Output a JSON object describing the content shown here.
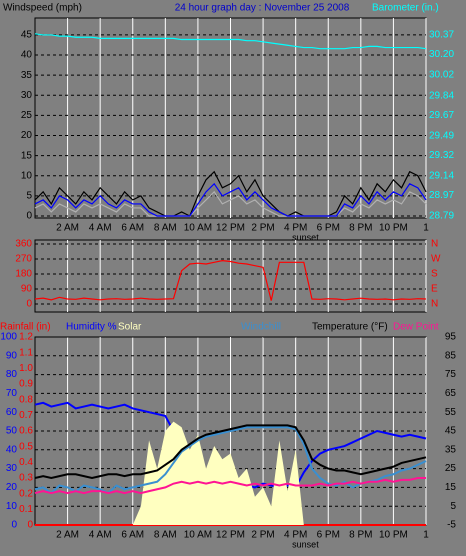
{
  "chart_data": [
    {
      "type": "line",
      "title": "24 hour graph day : November 25 2008",
      "title_color": "#0000cc",
      "ylabel": "Windspeed (mph)",
      "ylabel_color": "#000000",
      "y2label": "Barometer (in.)",
      "y2label_color": "#00ffff",
      "x": [
        0,
        0.5,
        1,
        1.5,
        2,
        2.5,
        3,
        3.5,
        4,
        4.5,
        5,
        5.5,
        6,
        6.5,
        7,
        7.5,
        8,
        8.5,
        9,
        9.5,
        10,
        10.5,
        11,
        11.5,
        12,
        12.5,
        13,
        13.5,
        14,
        14.5,
        15,
        15.5,
        16,
        16.5,
        17,
        17.5,
        18,
        18.5,
        19,
        19.5,
        20,
        20.5,
        21,
        21.5,
        22,
        22.5,
        23,
        23.5,
        24
      ],
      "xlim": [
        0,
        24
      ],
      "xticks": [
        {
          "value": 2,
          "label": "2 AM"
        },
        {
          "value": 4,
          "label": "4 AM"
        },
        {
          "value": 6,
          "label": "6 AM"
        },
        {
          "value": 8,
          "label": "8 AM"
        },
        {
          "value": 10,
          "label": "10 AM"
        },
        {
          "value": 12,
          "label": "12 PM"
        },
        {
          "value": 14,
          "label": "2 PM"
        },
        {
          "value": 16,
          "label": "4 PM"
        },
        {
          "value": 18,
          "label": "6 PM"
        },
        {
          "value": 20,
          "label": "8 PM"
        },
        {
          "value": 22,
          "label": "10 PM"
        },
        {
          "value": 24,
          "label": "1"
        }
      ],
      "ylim": [
        -0.5,
        49.2
      ],
      "yticks": [
        0,
        5,
        10,
        15,
        20,
        25,
        30,
        35,
        40,
        45
      ],
      "ytick_color": "#000000",
      "y2lim": [
        28.772,
        30.518
      ],
      "y2ticks": [
        28.79,
        28.97,
        29.14,
        29.32,
        29.49,
        29.67,
        29.84,
        30.02,
        {
          "value": 30.2,
          "label": "30.20"
        },
        30.37
      ],
      "y2tick_color": "#00ffff",
      "grid": true,
      "annotations": [
        {
          "x": 16.6,
          "text": "sunset"
        }
      ],
      "series": [
        {
          "color": "#000000",
          "values": [
            4,
            6,
            3,
            7,
            5,
            3,
            6,
            4,
            7,
            5,
            3,
            6,
            4,
            5,
            2,
            1,
            0,
            0,
            1,
            0,
            5,
            9,
            11,
            7,
            8,
            10,
            6,
            9,
            5,
            3,
            1,
            0,
            1,
            0,
            0,
            0,
            0,
            1,
            5,
            3,
            7,
            4,
            8,
            6,
            9,
            7,
            11,
            10,
            6
          ]
        },
        {
          "color": "#b0b0b0",
          "values": [
            2,
            3,
            1,
            3,
            2,
            1,
            3,
            2,
            3,
            2,
            1,
            3,
            2,
            2,
            0,
            0,
            0,
            0,
            0,
            0,
            2,
            4,
            6,
            3,
            4,
            5,
            3,
            4,
            2,
            1,
            0,
            0,
            0,
            0,
            0,
            0,
            0,
            0,
            2,
            1,
            3,
            2,
            4,
            3,
            4,
            3,
            6,
            5,
            3
          ]
        },
        {
          "color": "#0000ff",
          "values": [
            3,
            4,
            2,
            5,
            4,
            2,
            4,
            3,
            5,
            3,
            2,
            4,
            3,
            3,
            1,
            0,
            0,
            0,
            0,
            0,
            3,
            6,
            8,
            5,
            6,
            7,
            4,
            6,
            4,
            2,
            1,
            0,
            0,
            0,
            0,
            0,
            0,
            0,
            3,
            2,
            5,
            3,
            6,
            4,
            6,
            5,
            8,
            7,
            4
          ]
        },
        {
          "color": "#00ffff",
          "axis": "y2",
          "values": [
            30.38,
            30.37,
            30.37,
            30.36,
            30.36,
            30.35,
            30.35,
            30.35,
            30.34,
            30.34,
            30.34,
            30.34,
            30.34,
            30.34,
            30.34,
            30.34,
            30.34,
            30.34,
            30.33,
            30.33,
            30.33,
            30.33,
            30.33,
            30.33,
            30.33,
            30.33,
            30.32,
            30.32,
            30.31,
            30.3,
            30.29,
            30.28,
            30.27,
            30.26,
            30.26,
            30.25,
            30.25,
            30.25,
            30.25,
            30.26,
            30.26,
            30.27,
            30.27,
            30.26,
            30.26,
            30.26,
            30.26,
            30.26,
            30.25
          ]
        }
      ]
    },
    {
      "type": "line",
      "x": [
        0,
        0.5,
        1,
        1.5,
        2,
        2.5,
        3,
        3.5,
        4,
        4.5,
        5,
        5.5,
        6,
        6.5,
        7,
        7.5,
        8,
        8.5,
        9,
        9.5,
        10,
        10.5,
        11,
        11.5,
        12,
        12.5,
        13,
        13.5,
        14,
        14.5,
        15,
        15.5,
        16,
        16.5,
        17,
        17.5,
        18,
        18.5,
        19,
        19.5,
        20,
        20.5,
        21,
        21.5,
        22,
        22.5,
        23,
        23.5,
        24
      ],
      "xlim": [
        0,
        24
      ],
      "ylim": [
        -48,
        384
      ],
      "yticks": [
        0,
        90,
        180,
        270,
        360
      ],
      "ytick_color": "#ff0000",
      "y2lim": [
        -48,
        384
      ],
      "y2ticks": [
        {
          "value": 0,
          "label": "N"
        },
        {
          "value": 90,
          "label": "E"
        },
        {
          "value": 180,
          "label": "S"
        },
        {
          "value": 270,
          "label": "W"
        },
        {
          "value": 360,
          "label": "N"
        }
      ],
      "y2tick_color": "#ff0000",
      "grid": true,
      "series": [
        {
          "color": "#ff0000",
          "values": [
            30,
            35,
            25,
            40,
            30,
            28,
            35,
            30,
            25,
            30,
            32,
            28,
            30,
            35,
            30,
            28,
            30,
            32,
            200,
            240,
            245,
            240,
            250,
            260,
            255,
            245,
            240,
            230,
            220,
            20,
            250,
            250,
            250,
            250,
            30,
            28,
            32,
            30,
            25,
            30,
            35,
            30,
            28,
            30,
            25,
            30,
            28,
            32,
            30
          ]
        }
      ]
    },
    {
      "type": "line",
      "x": [
        0,
        0.5,
        1,
        1.5,
        2,
        2.5,
        3,
        3.5,
        4,
        4.5,
        5,
        5.5,
        6,
        6.5,
        7,
        7.5,
        8,
        8.5,
        9,
        9.5,
        10,
        10.5,
        11,
        11.5,
        12,
        12.5,
        13,
        13.5,
        14,
        14.5,
        15,
        15.5,
        16,
        16.5,
        17,
        17.5,
        18,
        18.5,
        19,
        19.5,
        20,
        20.5,
        21,
        21.5,
        22,
        22.5,
        23,
        23.5,
        24
      ],
      "xlim": [
        0,
        24
      ],
      "xticks": [
        {
          "value": 2,
          "label": "2 AM"
        },
        {
          "value": 4,
          "label": "4 AM"
        },
        {
          "value": 6,
          "label": "6 AM"
        },
        {
          "value": 8,
          "label": "8 AM"
        },
        {
          "value": 10,
          "label": "10 AM"
        },
        {
          "value": 12,
          "label": "12 PM"
        },
        {
          "value": 14,
          "label": "2 PM"
        },
        {
          "value": 16,
          "label": "4 PM"
        },
        {
          "value": 18,
          "label": "6 PM"
        },
        {
          "value": 20,
          "label": "8 PM"
        },
        {
          "value": 22,
          "label": "10 PM"
        },
        {
          "value": 24,
          "label": "1"
        }
      ],
      "ylim": [
        0,
        100
      ],
      "yticks": [
        0,
        10,
        20,
        30,
        40,
        50,
        60,
        70,
        80,
        90,
        100
      ],
      "ytick_color": "#0000ff",
      "y2lim": [
        -5,
        95
      ],
      "y2ticks": [
        -5,
        5,
        15,
        25,
        35,
        45,
        55,
        65,
        75,
        85,
        95
      ],
      "y2tick_color": "#000000",
      "y3lim": [
        0,
        1.2
      ],
      "y3ticks": [
        0,
        0.1,
        0.2,
        0.3,
        0.4,
        0.5,
        0.6,
        0.7,
        0.8,
        0.9,
        {
          "value": 1,
          "label": "1.0"
        },
        1.1,
        1.2
      ],
      "y3tick_color": "#ff0000",
      "grid": true,
      "annotations": [
        {
          "x": 16.6,
          "text": "sunset"
        }
      ],
      "series": [
        {
          "name": "Rainfall (in)",
          "color": "#ff0000",
          "axis": "y3",
          "values": [
            0,
            0,
            0,
            0,
            0,
            0,
            0,
            0,
            0,
            0,
            0,
            0,
            0,
            0,
            0,
            0,
            0,
            0,
            0,
            0,
            0,
            0,
            0,
            0,
            0,
            0,
            0,
            0,
            0,
            0,
            0,
            0,
            0,
            0,
            0,
            0,
            0,
            0,
            0,
            0,
            0,
            0,
            0,
            0,
            0,
            0,
            0,
            0,
            0
          ]
        },
        {
          "name": "Humidity %",
          "color": "#0000ff",
          "values": [
            64,
            65,
            63,
            64,
            65,
            62,
            63,
            64,
            63,
            62,
            63,
            64,
            62,
            61,
            60,
            59,
            58,
            50,
            38,
            30,
            24,
            22,
            21,
            20,
            21,
            20,
            21,
            20,
            22,
            21,
            20,
            21,
            20,
            28,
            34,
            38,
            40,
            41,
            42,
            44,
            46,
            48,
            50,
            49,
            48,
            47,
            48,
            47,
            46
          ]
        },
        {
          "name": "Solar",
          "color": "#ffffc0",
          "kind": "area",
          "values": [
            0,
            0,
            0,
            0,
            0,
            0,
            0,
            0,
            0,
            0,
            0,
            0,
            0,
            10,
            45,
            30,
            50,
            55,
            52,
            40,
            48,
            30,
            42,
            35,
            38,
            25,
            30,
            15,
            20,
            10,
            45,
            18,
            40,
            0,
            0,
            0,
            0,
            0,
            0,
            0,
            0,
            0,
            0,
            0,
            0,
            0,
            0,
            0,
            0
          ]
        },
        {
          "name": "Windchill",
          "color": "#3a8fd0",
          "axis": "y2",
          "values": [
            14,
            15,
            12,
            16,
            15,
            13,
            16,
            15,
            14,
            12,
            16,
            14,
            15,
            16,
            17,
            18,
            22,
            28,
            34,
            37,
            40,
            42,
            43,
            44,
            45,
            46,
            47,
            47,
            47,
            47,
            47,
            47,
            46,
            38,
            25,
            20,
            17,
            16,
            18,
            15,
            17,
            18,
            19,
            21,
            22,
            24,
            25,
            27,
            29
          ]
        },
        {
          "name": "Temperature (°F)",
          "color": "#000000",
          "axis": "y2",
          "values": [
            20,
            21,
            20,
            21,
            22,
            22,
            21,
            20,
            21,
            22,
            22,
            21,
            22,
            22,
            23,
            24,
            27,
            30,
            35,
            38,
            41,
            43,
            44,
            45,
            46,
            47,
            48,
            48,
            48,
            48,
            48,
            48,
            47,
            40,
            30,
            27,
            25,
            24,
            24,
            23,
            22,
            23,
            24,
            25,
            26,
            28,
            29,
            30,
            31
          ]
        },
        {
          "name": "Dew Point",
          "color": "#ff1493",
          "axis": "y2",
          "values": [
            12,
            13,
            12,
            13,
            12,
            13,
            12,
            13,
            13,
            12,
            13,
            12,
            13,
            12,
            13,
            14,
            15,
            17,
            18,
            17,
            18,
            17,
            18,
            17,
            18,
            17,
            16,
            17,
            16,
            17,
            16,
            17,
            16,
            16,
            16,
            17,
            16,
            17,
            17,
            18,
            17,
            18,
            18,
            19,
            18,
            19,
            19,
            20,
            20
          ]
        }
      ]
    }
  ]
}
